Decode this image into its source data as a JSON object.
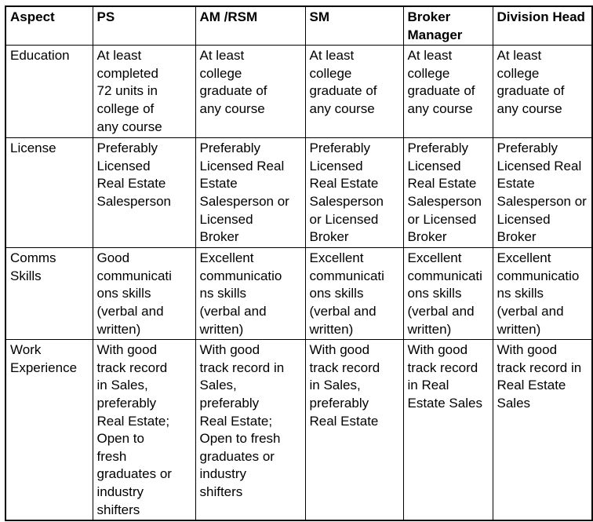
{
  "table": {
    "header": [
      "Aspect",
      "PS",
      "AM /RSM",
      "SM",
      "Broker Manager",
      "Division Head"
    ],
    "rows": [
      {
        "aspect": "Education",
        "cells": [
          "At least\ncompleted\n72 units in\ncollege of\nany course",
          "At least\ncollege\ngraduate of\nany course",
          "At least\ncollege\ngraduate of\nany course",
          "At least\ncollege\ngraduate of\nany course",
          "At least\ncollege\ngraduate of\nany course"
        ]
      },
      {
        "aspect": "License",
        "cells": [
          "Preferably\nLicensed\nReal Estate\nSalesperson",
          "Preferably\nLicensed Real\nEstate\nSalesperson or\nLicensed\nBroker",
          "Preferably\nLicensed\nReal Estate\nSalesperson\nor Licensed\nBroker",
          "Preferably\nLicensed\nReal Estate\nSalesperson\nor Licensed\nBroker",
          "Preferably\nLicensed Real\nEstate\nSalesperson or\nLicensed\nBroker"
        ]
      },
      {
        "aspect": "Comms\nSkills",
        "cells": [
          "Good\ncommunicati\nons skills\n(verbal and\nwritten)",
          "Excellent\ncommunicatio\nns skills\n(verbal and\nwritten)",
          "Excellent\ncommunicati\nons skills\n(verbal and\nwritten)",
          "Excellent\ncommunicati\nons skills\n(verbal and\nwritten)",
          "Excellent\ncommunicatio\nns skills\n(verbal and\nwritten)"
        ]
      },
      {
        "aspect": "Work\nExperience",
        "cells": [
          "With good\ntrack record\nin Sales,\npreferably\nReal Estate;\nOpen to\nfresh\ngraduates or\nindustry\nshifters",
          "With good\ntrack record in\nSales,\npreferably\nReal Estate;\nOpen to fresh\ngraduates or\nindustry\nshifters",
          "With good\ntrack record\nin Sales,\npreferably\nReal Estate",
          "With good\ntrack record\nin Real\nEstate Sales",
          "With good\ntrack record in\nReal Estate\nSales"
        ]
      }
    ]
  },
  "colors": {
    "border": "#000000",
    "text": "#000000",
    "background": "#ffffff"
  }
}
